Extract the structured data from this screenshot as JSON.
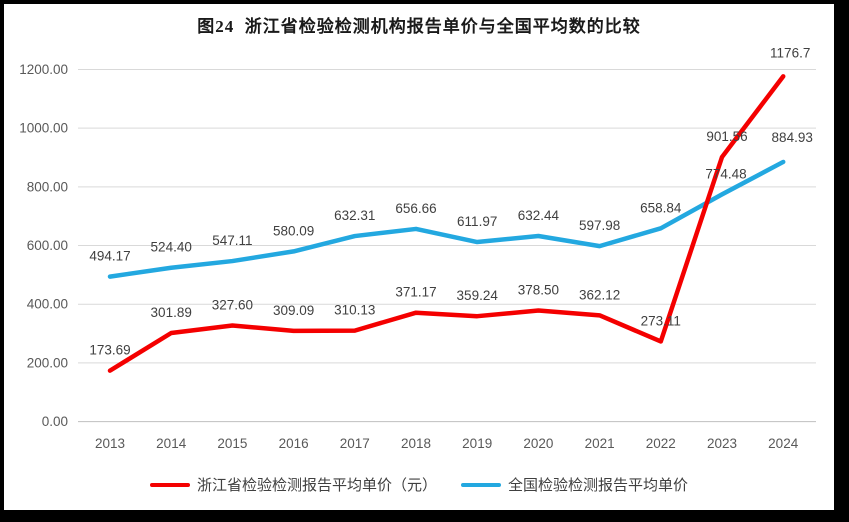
{
  "frame": {
    "border_color": "#000000",
    "background": "#ffffff"
  },
  "title": "图24  浙江省检验检测机构报告单价与全国平均数的比较",
  "chart_data": {
    "type": "line",
    "categories": [
      "2013",
      "2014",
      "2015",
      "2016",
      "2017",
      "2018",
      "2019",
      "2020",
      "2021",
      "2022",
      "2023",
      "2024"
    ],
    "series": [
      {
        "name": "浙江省检验检测报告平均单价（元）",
        "color": "#F40000",
        "values": [
          173.69,
          301.89,
          327.6,
          309.09,
          310.13,
          371.17,
          359.24,
          378.5,
          362.12,
          273.11,
          901.56,
          1176.7
        ],
        "labels": [
          "173.69",
          "301.89",
          "327.60",
          "309.09",
          "310.13",
          "371.17",
          "359.24",
          "378.50",
          "362.12",
          "273.11",
          "901.56",
          "1176.7"
        ]
      },
      {
        "name": "全国检验检测报告平均单价",
        "color": "#23A8E0",
        "values": [
          494.17,
          524.4,
          547.11,
          580.09,
          632.31,
          656.66,
          611.97,
          632.44,
          597.98,
          658.84,
          774.48,
          884.93
        ],
        "labels": [
          "494.17",
          "524.40",
          "547.11",
          "580.09",
          "632.31",
          "656.66",
          "611.97",
          "632.44",
          "597.98",
          "658.84",
          "774.48",
          "884.93"
        ]
      }
    ],
    "ylim": [
      0,
      1200
    ],
    "y_tick_step": 200,
    "y_ticks": [
      "0.00",
      "200.00",
      "400.00",
      "600.00",
      "800.00",
      "1000.00",
      "1200.00"
    ],
    "grid": "horizontal",
    "legend_position": "bottom",
    "grid_color": "#D9D9D9",
    "axis_line_color": "#BFBFBF",
    "tick_label_color": "#595959",
    "data_label_color": "#404040"
  },
  "legend": {
    "items": [
      {
        "label": "浙江省检验检测报告平均单价（元）",
        "color": "#F40000"
      },
      {
        "label": "全国检验检测报告平均单价",
        "color": "#23A8E0"
      }
    ]
  }
}
